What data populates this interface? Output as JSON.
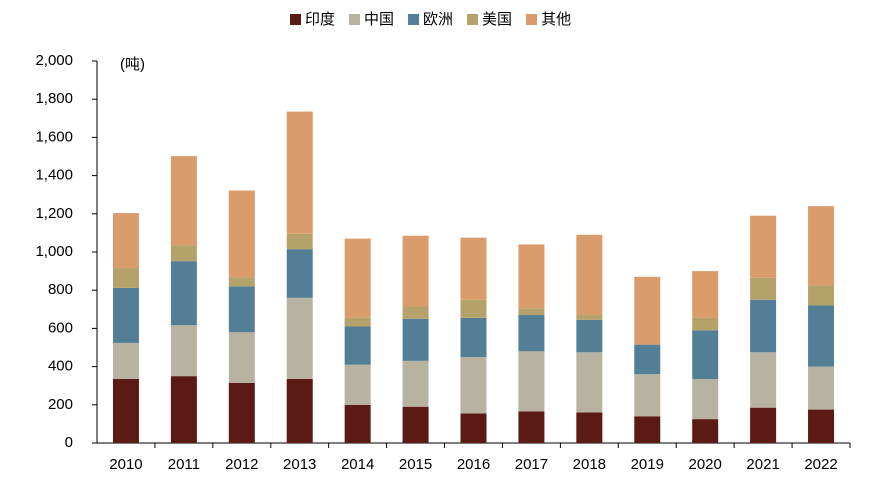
{
  "chart_data": {
    "type": "stacked_bar",
    "unit_label": "(吨)",
    "categories": [
      "2010",
      "2011",
      "2012",
      "2013",
      "2014",
      "2015",
      "2016",
      "2017",
      "2018",
      "2019",
      "2020",
      "2021",
      "2022"
    ],
    "series": [
      {
        "name": "印度",
        "color": "#5c1a14",
        "values": [
          335,
          350,
          315,
          335,
          200,
          190,
          155,
          165,
          160,
          140,
          125,
          185,
          175
        ]
      },
      {
        "name": "中国",
        "color": "#b8b3a0",
        "values": [
          189,
          267,
          265,
          425,
          210,
          240,
          295,
          315,
          315,
          220,
          210,
          290,
          225
        ]
      },
      {
        "name": "欧洲",
        "color": "#537f96",
        "values": [
          288,
          335,
          240,
          255,
          200,
          220,
          205,
          190,
          170,
          155,
          255,
          275,
          320
        ]
      },
      {
        "name": "美国",
        "color": "#b5a26a",
        "values": [
          104,
          84,
          47,
          80,
          45,
          65,
          95,
          35,
          25,
          0,
          65,
          115,
          105
        ]
      },
      {
        "name": "其他",
        "color": "#d99c6a",
        "values": [
          288,
          466,
          455,
          640,
          415,
          370,
          325,
          335,
          420,
          355,
          245,
          325,
          415
        ]
      }
    ],
    "ylim": [
      0,
      2000
    ],
    "yticks": [
      0,
      200,
      400,
      600,
      800,
      {
        "value": 1000,
        "label": "1,000"
      },
      {
        "value": 1200,
        "label": "1,200"
      },
      {
        "value": 1400,
        "label": "1,400"
      },
      {
        "value": 1600,
        "label": "1,600"
      },
      {
        "value": 1800,
        "label": "1,800"
      },
      {
        "value": 2000,
        "label": "2,000"
      }
    ],
    "grid": false
  }
}
